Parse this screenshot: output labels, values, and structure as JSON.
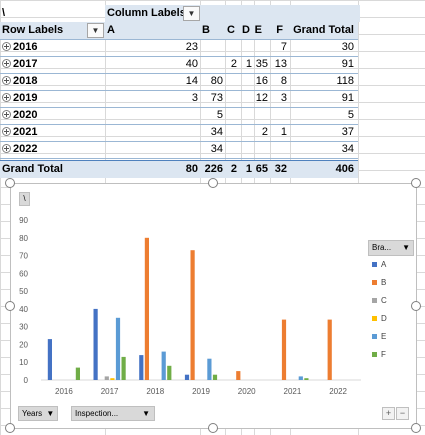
{
  "pivot": {
    "corner": "\\",
    "column_labels": "Column Labels",
    "row_labels": "Row Labels",
    "columns": [
      "A",
      "B",
      "C",
      "D",
      "E",
      "F",
      "Grand Total"
    ],
    "rows": [
      {
        "label": "2016",
        "values": [
          "23",
          "",
          "",
          "",
          "",
          "7",
          "30"
        ]
      },
      {
        "label": "2017",
        "values": [
          "40",
          "",
          "2",
          "1",
          "35",
          "13",
          "91"
        ]
      },
      {
        "label": "2018",
        "values": [
          "14",
          "80",
          "",
          "",
          "16",
          "8",
          "118"
        ]
      },
      {
        "label": "2019",
        "values": [
          "3",
          "73",
          "",
          "",
          "12",
          "3",
          "91"
        ]
      },
      {
        "label": "2020",
        "values": [
          "",
          "5",
          "",
          "",
          "",
          "",
          "5"
        ]
      },
      {
        "label": "2021",
        "values": [
          "",
          "34",
          "",
          "",
          "2",
          "1",
          "37"
        ]
      },
      {
        "label": "2022",
        "values": [
          "",
          "34",
          "",
          "",
          "",
          "",
          "34"
        ]
      }
    ],
    "grand_total": {
      "label": "Grand Total",
      "values": [
        "80",
        "226",
        "2",
        "1",
        "65",
        "32",
        "406"
      ]
    }
  },
  "chart_data": {
    "type": "bar",
    "title": "",
    "categories": [
      "2016",
      "2017",
      "2018",
      "2019",
      "2020",
      "2021",
      "2022"
    ],
    "ylim": [
      0,
      90
    ],
    "yticks": [
      0,
      10,
      20,
      30,
      40,
      50,
      60,
      70,
      80,
      90
    ],
    "grid": false,
    "legend_position": "right",
    "series": [
      {
        "name": "A",
        "color": "#4472c4",
        "values": [
          23,
          40,
          14,
          3,
          0,
          0,
          0
        ]
      },
      {
        "name": "B",
        "color": "#ed7d31",
        "values": [
          0,
          0,
          80,
          73,
          5,
          34,
          34
        ]
      },
      {
        "name": "C",
        "color": "#a5a5a5",
        "values": [
          0,
          2,
          0,
          0,
          0,
          0,
          0
        ]
      },
      {
        "name": "D",
        "color": "#ffc000",
        "values": [
          0,
          1,
          0,
          0,
          0,
          0,
          0
        ]
      },
      {
        "name": "E",
        "color": "#5b9bd5",
        "values": [
          0,
          35,
          16,
          12,
          0,
          2,
          0
        ]
      },
      {
        "name": "F",
        "color": "#70ad47",
        "values": [
          7,
          13,
          8,
          3,
          0,
          1,
          0
        ]
      }
    ]
  },
  "chart_ui": {
    "corner_marker": "\\",
    "legend_field": "Bra...",
    "axis_field_years": "Years",
    "axis_field_inspection": "Inspection...",
    "zoom_in": "+",
    "zoom_out": "−"
  }
}
